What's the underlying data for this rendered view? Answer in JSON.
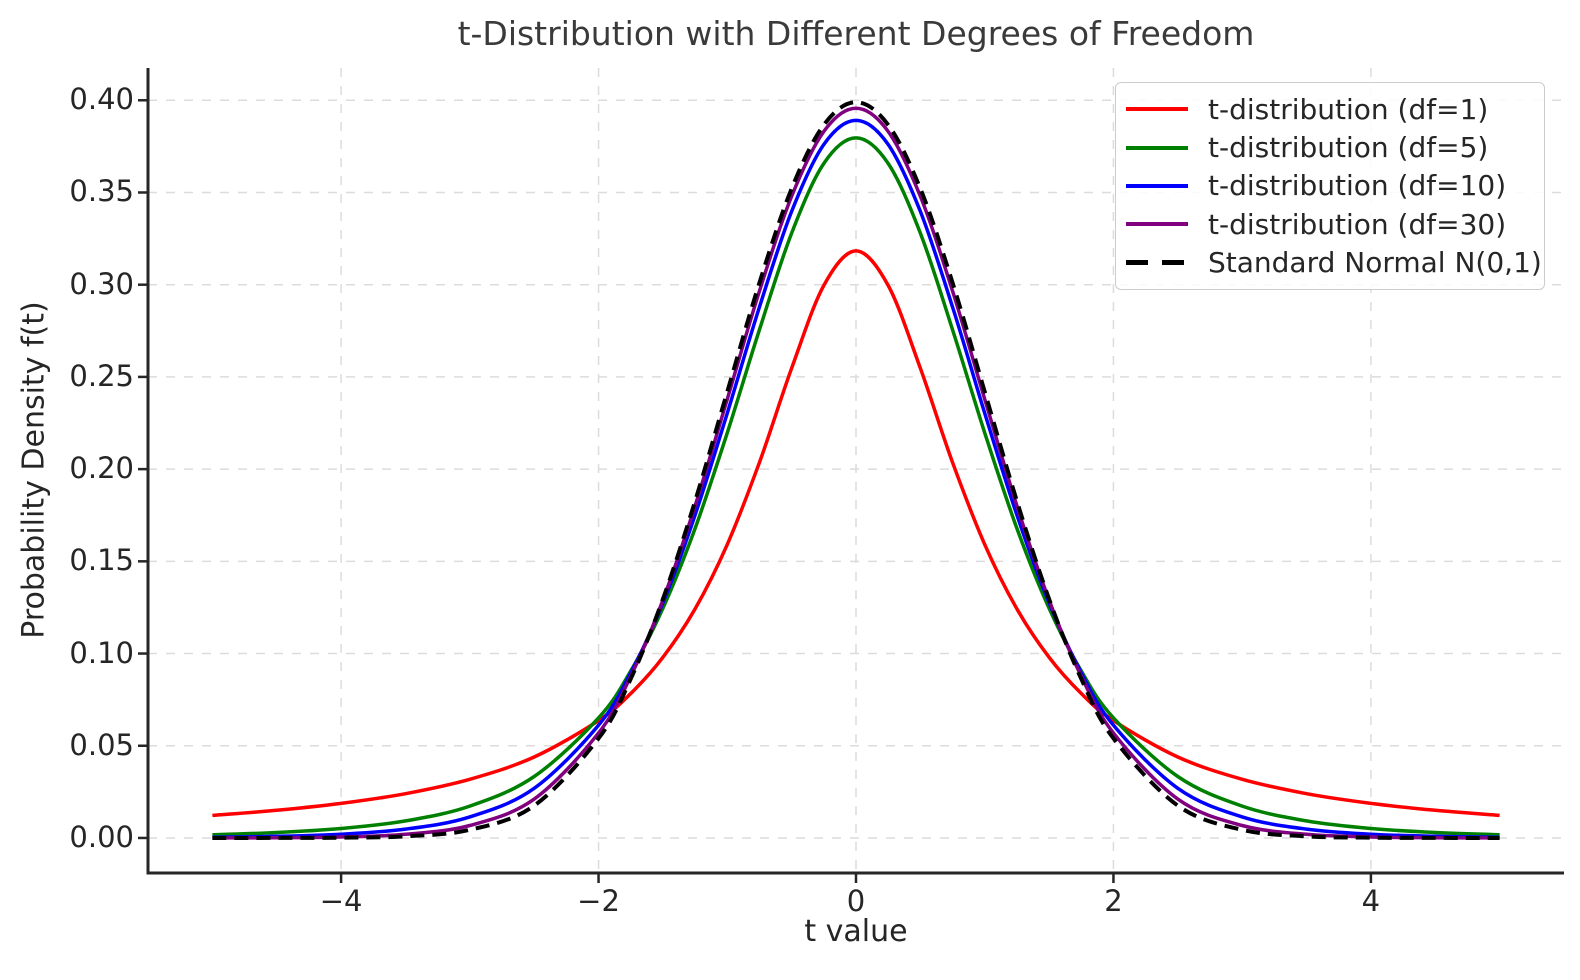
{
  "chart_data": {
    "type": "line",
    "title": "t-Distribution with Different Degrees of Freedom",
    "xlabel": "t value",
    "ylabel": "Probability Density f(t)",
    "xlim": [
      -5.5,
      5.5
    ],
    "ylim": [
      -0.019,
      0.4175
    ],
    "grid": "dashed, light gray, both axes",
    "legend_position": "upper right",
    "x_ticks": [
      -4,
      -2,
      0,
      2,
      4
    ],
    "x_tick_labels": [
      "−4",
      "−2",
      "0",
      "2",
      "4"
    ],
    "y_ticks": [
      0.0,
      0.05,
      0.1,
      0.15,
      0.2,
      0.25,
      0.3,
      0.35,
      0.4
    ],
    "y_tick_labels": [
      "0.00",
      "0.05",
      "0.10",
      "0.15",
      "0.20",
      "0.25",
      "0.30",
      "0.35",
      "0.40"
    ],
    "x": [
      -5,
      -4.5,
      -4,
      -3.5,
      -3,
      -2.5,
      -2,
      -1.75,
      -1.5,
      -1.25,
      -1,
      -0.75,
      -0.5,
      -0.25,
      0,
      0.25,
      0.5,
      0.75,
      1,
      1.25,
      1.5,
      1.75,
      2,
      2.5,
      3,
      3.5,
      4,
      4.5,
      5
    ],
    "series": [
      {
        "name": "t-distribution (df=1)",
        "color": "#ff0000",
        "dashed": false,
        "peak": 0.3183,
        "values": [
          0.012243,
          0.014979,
          0.018724,
          0.024023,
          0.031831,
          0.043905,
          0.063662,
          0.078353,
          0.097941,
          0.124219,
          0.159155,
          0.203718,
          0.254648,
          0.299586,
          0.31831,
          0.299586,
          0.254648,
          0.203718,
          0.159155,
          0.124219,
          0.097941,
          0.078353,
          0.063662,
          0.043905,
          0.031831,
          0.024023,
          0.018724,
          0.014979,
          0.012243
        ]
      },
      {
        "name": "t-distribution (df=5)",
        "color": "#008000",
        "dashed": false,
        "peak": 0.3796,
        "values": [
          0.001757,
          0.002948,
          0.005124,
          0.009244,
          0.017292,
          0.033326,
          0.065091,
          0.090538,
          0.124518,
          0.167867,
          0.21968,
          0.275656,
          0.327919,
          0.365721,
          0.379607,
          0.365721,
          0.327919,
          0.275656,
          0.21968,
          0.167867,
          0.124518,
          0.090538,
          0.065091,
          0.033326,
          0.017292,
          0.009244,
          0.005124,
          0.002948,
          0.001757
        ]
      },
      {
        "name": "t-distribution (df=10)",
        "color": "#0000ff",
        "dashed": false,
        "peak": 0.3891,
        "values": [
          0.000396,
          0.000882,
          0.00203,
          0.004784,
          0.011399,
          0.026934,
          0.061139,
          0.089504,
          0.127448,
          0.175097,
          0.230361,
          0.287972,
          0.339693,
          0.376,
          0.389108,
          0.376,
          0.339693,
          0.287972,
          0.230361,
          0.175097,
          0.127448,
          0.089504,
          0.061139,
          0.026934,
          0.011399,
          0.004784,
          0.00203,
          0.000882,
          0.000396
        ]
      },
      {
        "name": "t-distribution (df=30)",
        "color": "#800080",
        "dashed": false,
        "peak": 0.3956,
        "values": [
          3.3e-05,
          0.000133,
          0.000525,
          0.00196,
          0.006779,
          0.021056,
          0.056848,
          0.087694,
          0.128963,
          0.180097,
          0.237989,
          0.296643,
          0.347871,
          0.383066,
          0.395625,
          0.383066,
          0.347871,
          0.296643,
          0.237989,
          0.180097,
          0.128963,
          0.087694,
          0.056848,
          0.021056,
          0.006779,
          0.00196,
          0.000525,
          0.000133,
          3.3e-05
        ]
      },
      {
        "name": "Standard Normal N(0,1)",
        "color": "#000000",
        "dashed": true,
        "peak": 0.3989,
        "values": [
          1e-06,
          1.6e-05,
          0.000134,
          0.000873,
          0.004432,
          0.017528,
          0.053991,
          0.086241,
          0.129518,
          0.182649,
          0.241971,
          0.301137,
          0.352065,
          0.386668,
          0.398942,
          0.386668,
          0.352065,
          0.301137,
          0.241971,
          0.182649,
          0.129518,
          0.086241,
          0.053991,
          0.017528,
          0.004432,
          0.000873,
          0.000134,
          1.6e-05,
          1e-06
        ]
      }
    ],
    "colors": {
      "background": "#ffffff",
      "grid": "#dcdcdc",
      "spine": "#262626",
      "text": "#262626"
    }
  }
}
